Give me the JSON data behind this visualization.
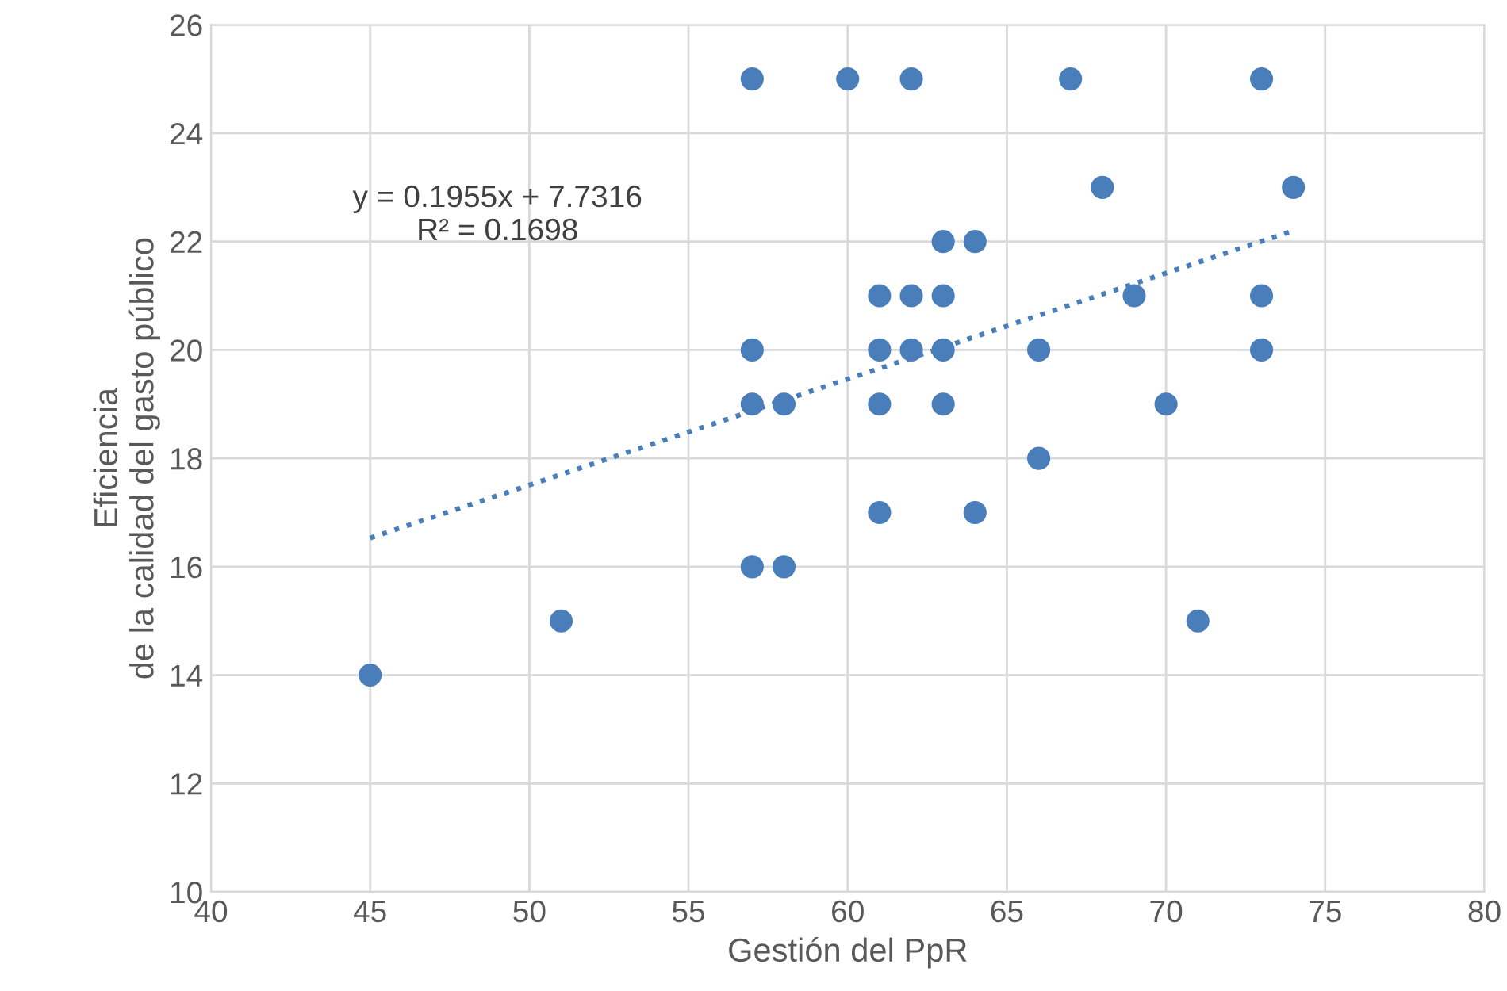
{
  "chart_data": {
    "type": "scatter",
    "xlabel": "Gestión del PpR",
    "ylabel": "Eficiencia\nde la calidad del gasto público",
    "series": [
      {
        "color": "#4a7ebb",
        "marker": "circle",
        "x": [
          57,
          60,
          62,
          67,
          73,
          68,
          74,
          63,
          64,
          61,
          62,
          63,
          69,
          73,
          57,
          61,
          62,
          63,
          66,
          73,
          57,
          58,
          61,
          63,
          70,
          66,
          61,
          64,
          57,
          58,
          51,
          71,
          45
        ],
        "values": [
          25,
          25,
          25,
          25,
          25,
          23,
          23,
          22,
          22,
          21,
          21,
          21,
          21,
          21,
          20,
          20,
          20,
          20,
          20,
          20,
          19,
          19,
          19,
          19,
          19,
          18,
          17,
          17,
          16,
          16,
          15,
          15,
          14
        ]
      },
      {
        "type": "line",
        "color": "#4a7ebb",
        "line_style": "dotted",
        "marker": "none",
        "x": [
          45,
          74
        ],
        "values": [
          16.53,
          22.2
        ]
      }
    ],
    "annotations": [
      "y = 0.1955x + 7.7316\nR² = 0.1698"
    ],
    "xlim": [
      40,
      80
    ],
    "xticks": [
      40,
      45,
      50,
      55,
      60,
      65,
      70,
      75,
      80
    ],
    "ylim": [
      10,
      26
    ],
    "yticks": [
      10,
      12,
      14,
      16,
      18,
      20,
      22,
      24,
      26
    ],
    "grid": true,
    "legend": false
  }
}
